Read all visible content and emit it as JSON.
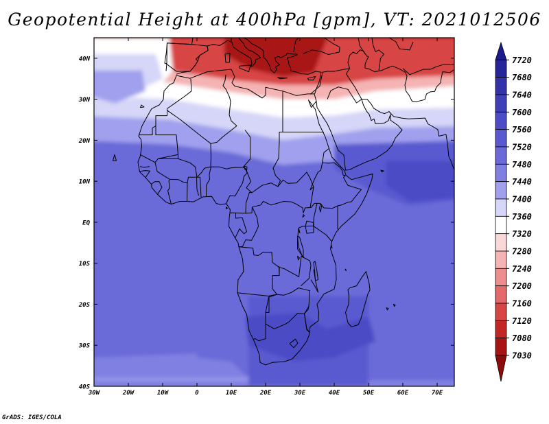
{
  "title": "Geopotential Height at 400hPa [gpm], VT: 2021012506",
  "credit": "GrADS: IGES/COLA",
  "map": {
    "projection": "latlon",
    "lon_range": [
      -30,
      75
    ],
    "lat_range": [
      -40,
      45
    ],
    "lat_ticks": [
      "40N",
      "30N",
      "20N",
      "10N",
      "EQ",
      "10S",
      "20S",
      "30S",
      "40S"
    ],
    "lon_ticks": [
      "30W",
      "20W",
      "10W",
      "0",
      "10E",
      "20E",
      "30E",
      "40E",
      "50E",
      "60E",
      "70E"
    ]
  },
  "colorbar": {
    "levels": [
      "7720",
      "7680",
      "7640",
      "7600",
      "7560",
      "7520",
      "7480",
      "7440",
      "7400",
      "7360",
      "7320",
      "7280",
      "7240",
      "7200",
      "7160",
      "7120",
      "7080",
      "7030"
    ],
    "colors": [
      "#1c1c8c",
      "#26269a",
      "#3232aa",
      "#3f3fba",
      "#4c4cc6",
      "#5a5ad0",
      "#6a6ad8",
      "#8080e2",
      "#a0a0ee",
      "#d6d6f8",
      "#ffffff",
      "#fbd8d8",
      "#f5b3b3",
      "#ee8d8d",
      "#e46a6a",
      "#d84545",
      "#c42626",
      "#a81414",
      "#8e0b0b"
    ]
  },
  "field_colors": {
    "red_dark": "#a81414",
    "red_mid": "#d84545",
    "red_light": "#f5b3b3",
    "white": "#ffffff",
    "lav_light": "#d6d6f8",
    "lav": "#a0a0ee",
    "blue_light": "#8080e2",
    "blue": "#6a6ad8",
    "blue_mid": "#5a5ad0",
    "blue_dark": "#4c4cc6"
  },
  "coastline_color": "#000000"
}
